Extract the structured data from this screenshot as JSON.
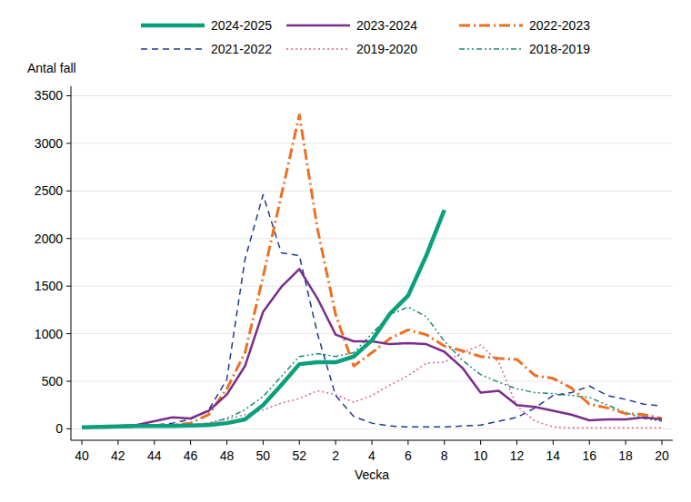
{
  "chart_data": {
    "type": "line",
    "y_label": "Antal fall",
    "x_label": "Vecka",
    "categories": [
      "40",
      null,
      "42",
      null,
      "44",
      null,
      "46",
      null,
      "48",
      null,
      "50",
      null,
      "52",
      null,
      "2",
      null,
      "4",
      null,
      "6",
      null,
      "8",
      null,
      "10",
      null,
      "12",
      null,
      "14",
      null,
      "16",
      null,
      "18",
      null,
      "20"
    ],
    "ylim": [
      -120,
      3600
    ],
    "yticks": [
      0,
      500,
      1000,
      1500,
      2000,
      2500,
      3000,
      3500
    ],
    "grid": true,
    "legend": "top",
    "series": [
      {
        "name": "2024-2025",
        "color": "#0aa07c",
        "line_style": "solid",
        "values": [
          15,
          20,
          25,
          30,
          30,
          30,
          35,
          40,
          60,
          100,
          250,
          460,
          680,
          700,
          700,
          760,
          930,
          1210,
          1400,
          1820,
          2300,
          null,
          null,
          null,
          null,
          null,
          null,
          null,
          null,
          null,
          null,
          null,
          null
        ]
      },
      {
        "name": "2023-2024",
        "color": "#7a2e8c",
        "line_style": "solid",
        "values": [
          15,
          25,
          30,
          40,
          80,
          120,
          110,
          190,
          360,
          660,
          1230,
          1490,
          1680,
          1370,
          990,
          920,
          920,
          890,
          900,
          890,
          810,
          640,
          380,
          400,
          250,
          230,
          190,
          150,
          90,
          100,
          100,
          120,
          100
        ]
      },
      {
        "name": "2022-2023",
        "color": "#ef6f22",
        "line_style": "dashdot",
        "values": [
          10,
          15,
          20,
          25,
          30,
          40,
          60,
          150,
          420,
          800,
          1600,
          2450,
          3300,
          2100,
          1200,
          660,
          800,
          950,
          1040,
          990,
          870,
          820,
          760,
          740,
          730,
          560,
          530,
          430,
          260,
          220,
          160,
          150,
          110
        ]
      },
      {
        "name": "2021-2022",
        "color": "#1f3b8c",
        "line_style": "dashed",
        "values": [
          10,
          15,
          20,
          30,
          40,
          60,
          100,
          200,
          520,
          1780,
          2460,
          1850,
          1820,
          1000,
          350,
          130,
          60,
          30,
          20,
          20,
          20,
          30,
          40,
          80,
          120,
          220,
          350,
          380,
          450,
          350,
          310,
          260,
          240
        ]
      },
      {
        "name": "2019-2020",
        "color": "#e0609a",
        "line_style": "dotted",
        "values": [
          10,
          12,
          15,
          20,
          25,
          30,
          40,
          60,
          100,
          150,
          200,
          270,
          320,
          400,
          360,
          280,
          350,
          460,
          560,
          690,
          700,
          800,
          880,
          700,
          240,
          80,
          20,
          10,
          10,
          10,
          10,
          10,
          10
        ]
      },
      {
        "name": "2018-2019",
        "color": "#1b8a78",
        "line_style": "dashdotdot",
        "values": [
          10,
          12,
          15,
          20,
          25,
          30,
          40,
          60,
          110,
          200,
          340,
          550,
          760,
          790,
          760,
          800,
          1000,
          1200,
          1280,
          1180,
          920,
          720,
          570,
          490,
          420,
          380,
          370,
          350,
          330,
          250,
          170,
          110,
          80
        ]
      }
    ]
  }
}
